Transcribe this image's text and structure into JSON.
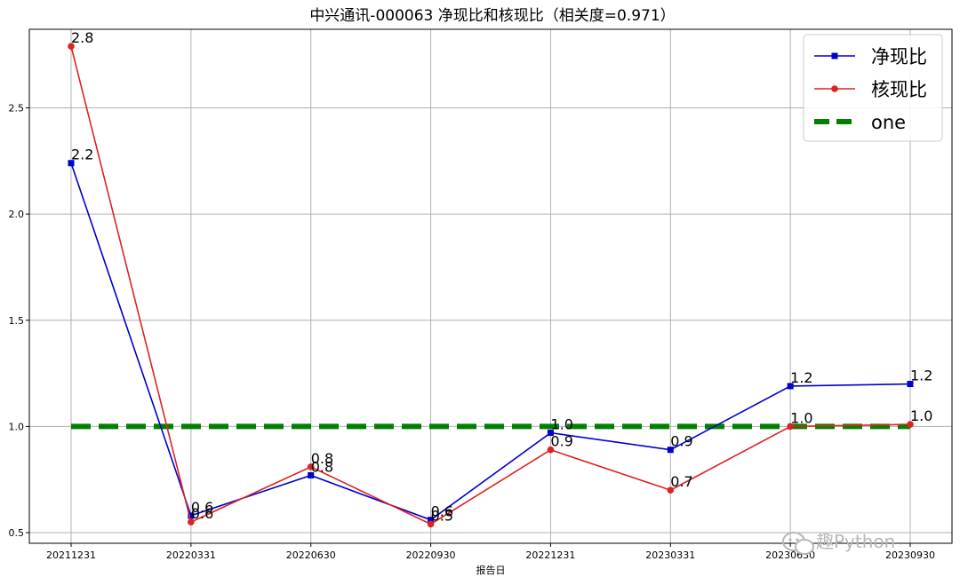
{
  "chart_data": {
    "type": "line",
    "title": "中兴通讯-000063 净现比和核现比（相关度=0.971）",
    "xlabel": "报告日",
    "ylabel": "",
    "categories": [
      "20211231",
      "20220331",
      "20220630",
      "20220930",
      "20221231",
      "20230331",
      "20230630",
      "20230930"
    ],
    "ylim": [
      0.45,
      2.87
    ],
    "yticks": [
      "0.5",
      "1.0",
      "1.5",
      "2.0",
      "2.5"
    ],
    "grid": true,
    "legend_position": "top-right",
    "series": [
      {
        "name": "净现比",
        "color": "#0000cc",
        "marker": "square",
        "values": [
          2.24,
          0.58,
          0.77,
          0.56,
          0.97,
          0.89,
          1.19,
          1.2
        ],
        "labels": [
          "2.2",
          "0.6",
          "0.8",
          "0.6",
          "1.0",
          "0.9",
          "1.2",
          "1.2"
        ]
      },
      {
        "name": "核现比",
        "color": "#dd2222",
        "marker": "circle",
        "values": [
          2.79,
          0.55,
          0.81,
          0.54,
          0.89,
          0.7,
          1.0,
          1.01
        ],
        "labels": [
          "2.8",
          "0.6",
          "0.8",
          "0.5",
          "0.9",
          "0.7",
          "1.0",
          "1.0"
        ]
      },
      {
        "name": "one",
        "color": "#008000",
        "style": "dashed",
        "values": [
          1,
          1,
          1,
          1,
          1,
          1,
          1,
          1
        ]
      }
    ]
  },
  "watermark": {
    "icon": "wechat-icon",
    "text": "趣Python"
  }
}
